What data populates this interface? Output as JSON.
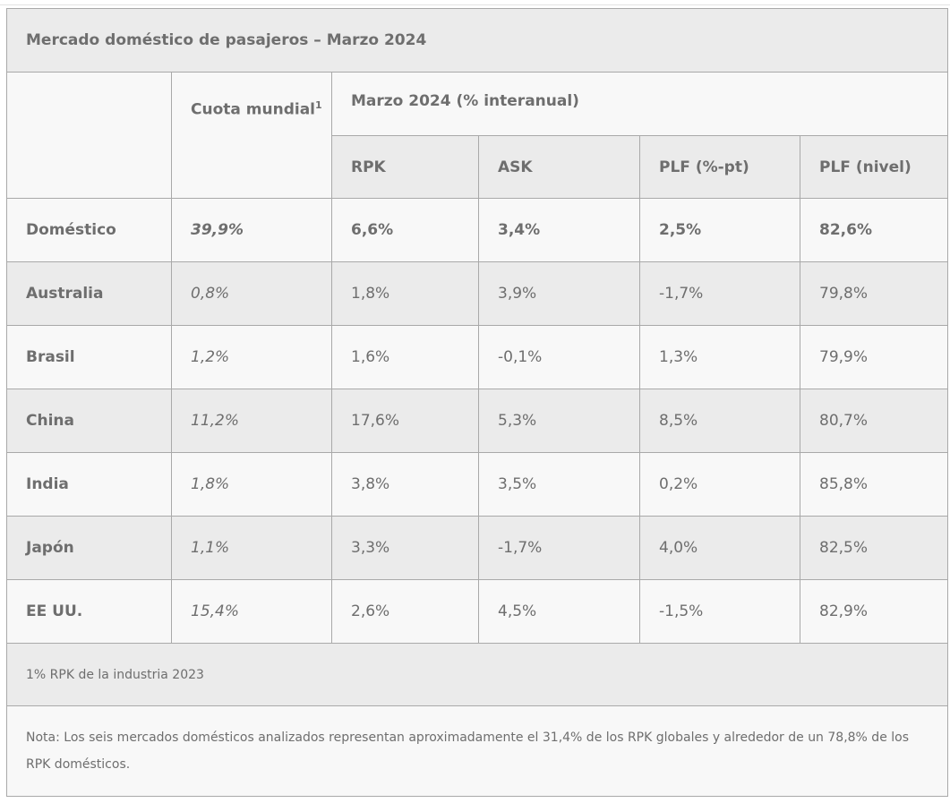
{
  "title": "Mercado doméstico de pasajeros – Marzo 2024",
  "headers": {
    "cuota": "Cuota mundial",
    "cuota_sup": "1",
    "period": "Marzo 2024 (% interanual)",
    "rpk": "RPK",
    "ask": "ASK",
    "plf_pt": "PLF (%-pt)",
    "plf_level": "PLF (nivel)"
  },
  "total": {
    "name": "Doméstico",
    "share": "39,9%",
    "rpk": "6,6%",
    "ask": "3,4%",
    "plf_pt": "2,5%",
    "plf_level": "82,6%"
  },
  "rows": [
    {
      "name": "Australia",
      "share": "0,8%",
      "rpk": "1,8%",
      "ask": "3,9%",
      "plf_pt": "-1,7%",
      "plf_level": "79,8%"
    },
    {
      "name": "Brasil",
      "share": "1,2%",
      "rpk": "1,6%",
      "ask": "-0,1%",
      "plf_pt": "1,3%",
      "plf_level": "79,9%"
    },
    {
      "name": "China",
      "share": "11,2%",
      "rpk": "17,6%",
      "ask": "5,3%",
      "plf_pt": "8,5%",
      "plf_level": "80,7%"
    },
    {
      "name": "India",
      "share": "1,8%",
      "rpk": "3,8%",
      "ask": "3,5%",
      "plf_pt": "0,2%",
      "plf_level": "85,8%"
    },
    {
      "name": "Japón",
      "share": "1,1%",
      "rpk": "3,3%",
      "ask": "-1,7%",
      "plf_pt": "4,0%",
      "plf_level": "82,5%"
    },
    {
      "name": "EE UU.",
      "share": "15,4%",
      "rpk": "2,6%",
      "ask": "4,5%",
      "plf_pt": "-1,5%",
      "plf_level": "82,9%"
    }
  ],
  "footnote": "1% RPK de la industria 2023",
  "note": "Nota: Los seis mercados domésticos analizados representan aproximadamente el 31,4% de los RPK globales y alrededor de un 78,8% de los RPK domésticos."
}
